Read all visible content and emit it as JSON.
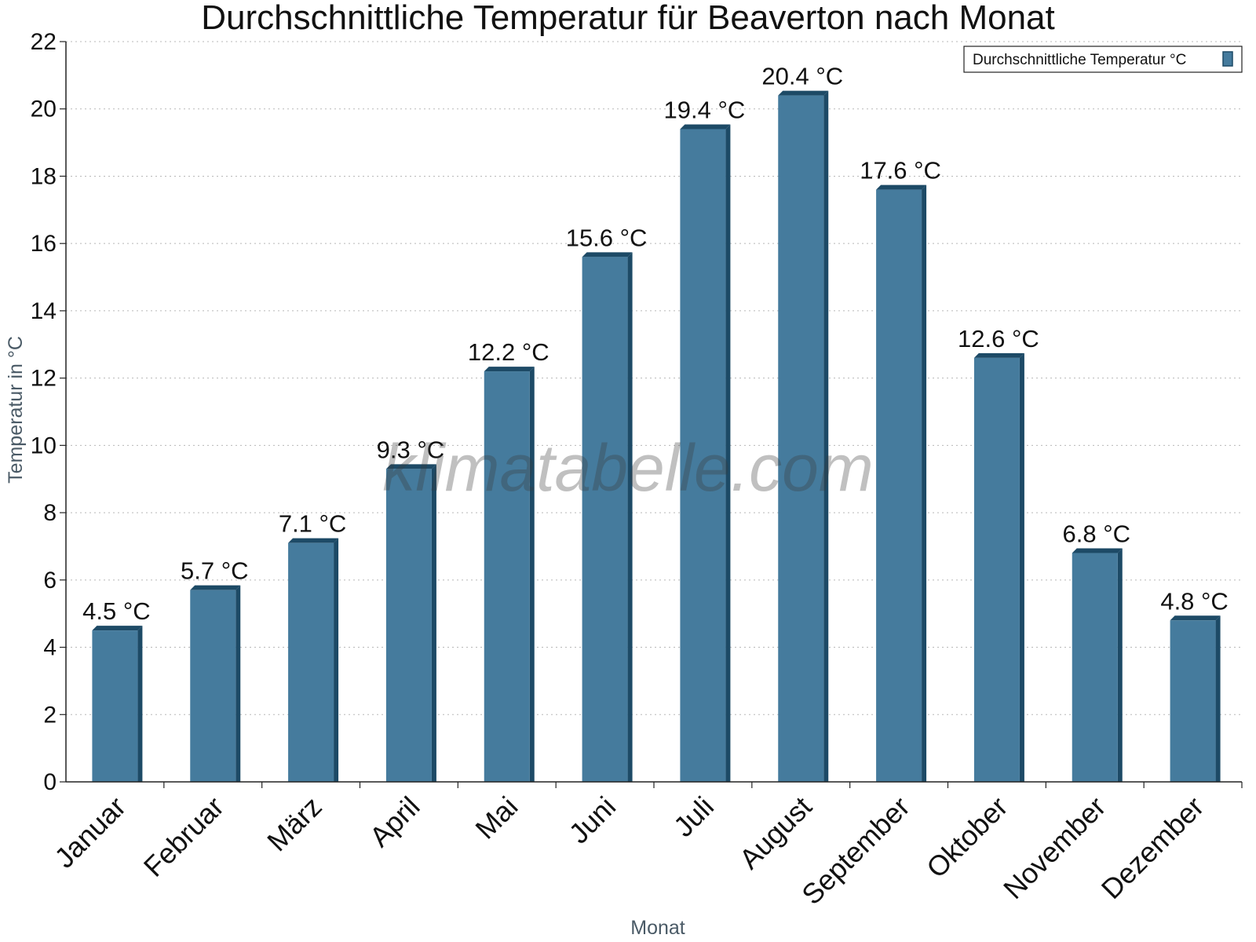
{
  "chart_data": {
    "type": "bar",
    "title": "Durchschnittliche Temperatur für Beaverton nach Monat",
    "xlabel": "Monat",
    "ylabel": "Temperatur in °C",
    "categories": [
      "Januar",
      "Februar",
      "März",
      "April",
      "Mai",
      "Juni",
      "Juli",
      "August",
      "September",
      "Oktober",
      "November",
      "Dezember"
    ],
    "series": [
      {
        "name": "Durchschnittliche Temperatur °C",
        "values": [
          4.5,
          5.7,
          7.1,
          9.3,
          12.2,
          15.6,
          19.4,
          20.4,
          17.6,
          12.6,
          6.8,
          4.8
        ],
        "color": "#457b9d",
        "shadow_color": "#1d4a66"
      }
    ],
    "data_labels": [
      "4.5 °C",
      "5.7 °C",
      "7.1 °C",
      "9.3 °C",
      "12.2 °C",
      "15.6 °C",
      "19.4 °C",
      "20.4 °C",
      "17.6 °C",
      "12.6 °C",
      "6.8 °C",
      "4.8 °C"
    ],
    "ylim": [
      0,
      22
    ],
    "yticks": [
      "0",
      "2",
      "4",
      "6",
      "8",
      "10",
      "12",
      "14",
      "16",
      "18",
      "20",
      "22"
    ],
    "grid": true,
    "legend_position": "top-right"
  },
  "watermark": "klimatabelle.com"
}
